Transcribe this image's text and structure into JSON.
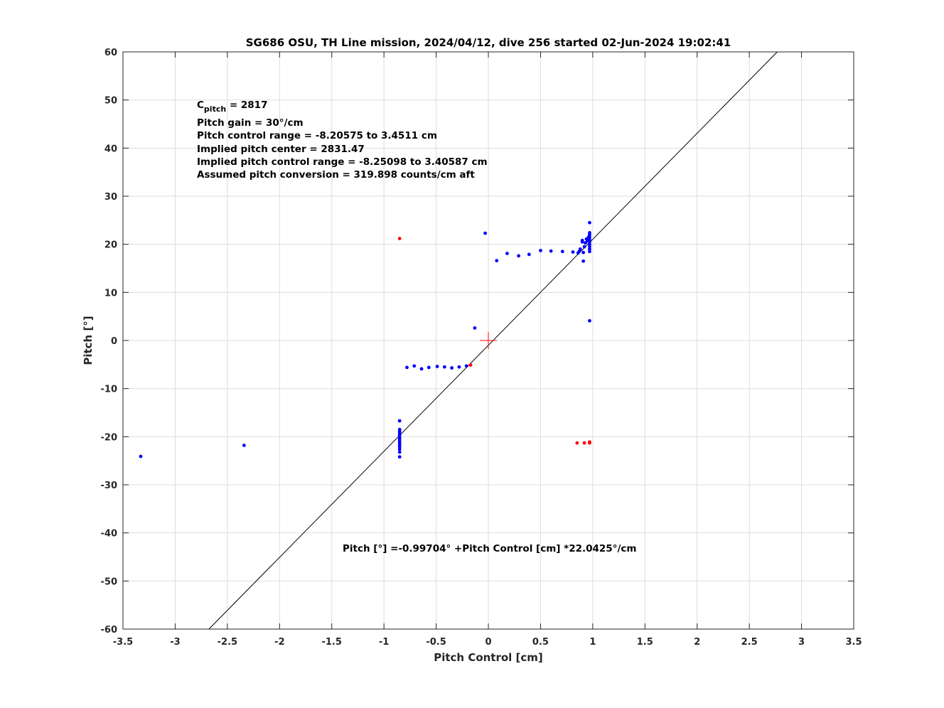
{
  "chart_data": {
    "type": "scatter",
    "title": "SG686 OSU, TH Line mission, 2024/04/12, dive 256 started 02-Jun-2024 19:02:41",
    "xlabel": "Pitch Control [cm]",
    "ylabel": "Pitch [°]",
    "xlim": [
      -3.5,
      3.5
    ],
    "ylim": [
      -60,
      60
    ],
    "xticks": [
      -3.5,
      -3,
      -2.5,
      -2,
      -1.5,
      -1,
      -0.5,
      0,
      0.5,
      1,
      1.5,
      2,
      2.5,
      3,
      3.5
    ],
    "yticks": [
      -60,
      -50,
      -40,
      -30,
      -20,
      -10,
      0,
      10,
      20,
      30,
      40,
      50,
      60
    ],
    "xtick_labels": [
      "-3.5",
      "-3",
      "-2.5",
      "-2",
      "-1.5",
      "-1",
      "-0.5",
      "0",
      "0.5",
      "1",
      "1.5",
      "2",
      "2.5",
      "3",
      "3.5"
    ],
    "ytick_labels": [
      "-60",
      "-50",
      "-40",
      "-30",
      "-20",
      "-10",
      "0",
      "10",
      "20",
      "30",
      "40",
      "50",
      "60"
    ],
    "grid": true,
    "colors": {
      "good": "#0000ff",
      "bad": "#ff0000",
      "fit": "#000000",
      "center": "#ff0000"
    },
    "series": [
      {
        "color": "#0000ff",
        "points": [
          [
            -3.33,
            -24.1
          ],
          [
            -2.34,
            -21.8
          ],
          [
            -0.85,
            -24.2
          ],
          [
            -0.85,
            -23.2
          ],
          [
            -0.85,
            -22.6
          ],
          [
            -0.85,
            -22.1
          ],
          [
            -0.85,
            -21.7
          ],
          [
            -0.85,
            -21.3
          ],
          [
            -0.85,
            -20.9
          ],
          [
            -0.85,
            -20.5
          ],
          [
            -0.85,
            -20.1
          ],
          [
            -0.85,
            -19.7
          ],
          [
            -0.85,
            -19.3
          ],
          [
            -0.85,
            -18.9
          ],
          [
            -0.85,
            -18.5
          ],
          [
            -0.85,
            -16.7
          ],
          [
            -0.78,
            -5.6
          ],
          [
            -0.71,
            -5.3
          ],
          [
            -0.64,
            -5.9
          ],
          [
            -0.57,
            -5.6
          ],
          [
            -0.49,
            -5.4
          ],
          [
            -0.42,
            -5.5
          ],
          [
            -0.35,
            -5.7
          ],
          [
            -0.28,
            -5.5
          ],
          [
            -0.21,
            -5.3
          ],
          [
            -0.13,
            2.6
          ],
          [
            -0.03,
            22.3
          ],
          [
            0.08,
            16.6
          ],
          [
            0.18,
            18.1
          ],
          [
            0.29,
            17.6
          ],
          [
            0.39,
            17.9
          ],
          [
            0.5,
            18.7
          ],
          [
            0.6,
            18.6
          ],
          [
            0.71,
            18.5
          ],
          [
            0.81,
            18.4
          ],
          [
            0.86,
            18.2
          ],
          [
            0.87,
            18.5
          ],
          [
            0.88,
            19.0
          ],
          [
            0.9,
            20.8
          ],
          [
            0.9,
            20.5
          ],
          [
            0.91,
            18.3
          ],
          [
            0.91,
            16.5
          ],
          [
            0.92,
            19.5
          ],
          [
            0.93,
            20.3
          ],
          [
            0.94,
            21.1
          ],
          [
            0.95,
            20.7
          ],
          [
            0.96,
            21.5
          ],
          [
            0.97,
            18.5
          ],
          [
            0.97,
            19.0
          ],
          [
            0.97,
            19.5
          ],
          [
            0.97,
            20.0
          ],
          [
            0.97,
            20.5
          ],
          [
            0.97,
            21.0
          ],
          [
            0.97,
            21.5
          ],
          [
            0.97,
            22.0
          ],
          [
            0.97,
            22.4
          ],
          [
            0.97,
            24.5
          ],
          [
            0.97,
            4.1
          ]
        ]
      },
      {
        "color": "#ff0000",
        "points": [
          [
            -0.85,
            21.2
          ],
          [
            -0.17,
            -5.1
          ],
          [
            0.85,
            -21.3
          ],
          [
            0.92,
            -21.3
          ],
          [
            0.97,
            -21.3
          ],
          [
            0.97,
            -21.1
          ]
        ]
      }
    ],
    "fit_line": {
      "intercept": -0.99704,
      "slope": 22.0425
    },
    "center_marker": [
      0,
      0
    ],
    "annotations": {
      "c_pitch_prefix": "C",
      "c_pitch_sub": "pitch",
      "c_pitch_value": " = 2817",
      "lines": [
        "Pitch gain = 30°/cm",
        "Pitch control range = -8.20575 to 3.4511 cm",
        "Implied pitch center = 2831.47",
        "Implied pitch control range = -8.25098 to 3.40587 cm",
        "Assumed pitch conversion = 319.898 counts/cm aft"
      ],
      "equation": "Pitch [°] =-0.99704° +Pitch Control [cm] *22.0425°/cm"
    }
  }
}
